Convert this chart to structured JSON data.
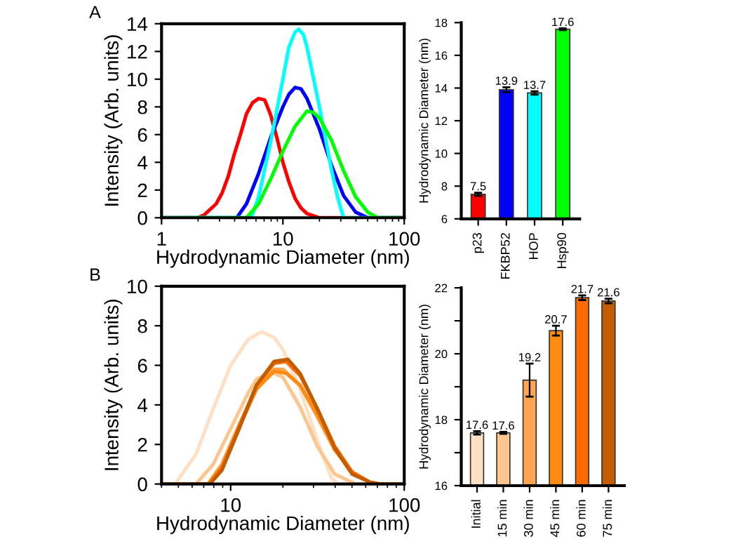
{
  "chart_data": [
    {
      "type": "line",
      "log": "x",
      "xlabel": "Hydrodynamic Diameter (nm)",
      "ylabel": "Intensity (Arb. units)",
      "annotations": [
        "A"
      ],
      "xlim": [
        1,
        100
      ],
      "xticks": [
        1,
        10,
        100
      ],
      "ylim": [
        0,
        14
      ],
      "yticks": [
        0,
        2,
        4,
        6,
        8,
        10,
        12,
        14
      ],
      "series": [
        {
          "color": "#ff0000",
          "x": [
            1,
            2.0,
            2.24,
            2.82,
            3.16,
            3.55,
            3.98,
            4.47,
            5.01,
            5.62,
            6.31,
            7.08,
            7.94,
            8.91,
            10,
            11.2,
            12.6,
            14.1,
            15.8,
            20,
            100
          ],
          "values": [
            0,
            0,
            0.2,
            1.0,
            1.8,
            3,
            4.6,
            6.0,
            7.5,
            8.3,
            8.6,
            8.5,
            7.4,
            5.8,
            4.0,
            2.6,
            1.4,
            0.7,
            0.3,
            0,
            0
          ]
        },
        {
          "color": "#0000ff",
          "x": [
            1,
            4.17,
            5.01,
            6.31,
            7.94,
            10,
            11.2,
            12.6,
            14.1,
            15.8,
            20,
            25.1,
            31.6,
            39.8,
            50.1,
            100
          ],
          "values": [
            0,
            0,
            1.0,
            3.2,
            5.8,
            8.0,
            8.9,
            9.4,
            9.3,
            8.6,
            6.4,
            3.8,
            1.6,
            0.4,
            0,
            0
          ]
        },
        {
          "color": "#00ffff",
          "x": [
            1,
            5.5,
            6.31,
            7.94,
            10,
            11.2,
            12.6,
            13.5,
            14.8,
            15.8,
            20,
            25.1,
            28.2,
            31.6,
            100
          ],
          "values": [
            0,
            0,
            1.5,
            5.5,
            10.0,
            12.3,
            13.4,
            13.6,
            13.2,
            12.3,
            8.0,
            3.5,
            1.5,
            0,
            0
          ]
        },
        {
          "color": "#00ff00",
          "x": [
            1,
            5.01,
            6.31,
            7.94,
            10,
            12.6,
            15.8,
            17.8,
            20,
            25.1,
            31.6,
            39.8,
            50.1,
            60.3,
            100
          ],
          "values": [
            0,
            0,
            1.0,
            2.8,
            4.8,
            6.6,
            7.7,
            7.6,
            7.2,
            5.6,
            3.4,
            1.5,
            0.4,
            0,
            0
          ]
        }
      ]
    },
    {
      "type": "bar",
      "ylabel": "Hydrodynamic Diameter (nm)",
      "categories": [
        "p23",
        "FKBP52",
        "HOP",
        "Hsp90"
      ],
      "colors": [
        "#ff0000",
        "#0000ff",
        "#00ffff",
        "#00ff00"
      ],
      "values": [
        7.5,
        13.9,
        13.7,
        17.6
      ],
      "errors": [
        0.1,
        0.15,
        0.1,
        0.05
      ],
      "data_labels": true,
      "ylim": [
        6,
        18
      ],
      "yticks": [
        6,
        8,
        10,
        12,
        14,
        16,
        18
      ]
    },
    {
      "type": "line",
      "log": "x",
      "xlabel": "Hydrodynamic Diameter (nm)",
      "ylabel": "Intensity (Arb. units)",
      "annotations": [
        "B"
      ],
      "xlim": [
        4,
        100
      ],
      "xticks": [
        10,
        100
      ],
      "ylim": [
        0,
        10
      ],
      "yticks": [
        0,
        2,
        4,
        6,
        8,
        10
      ],
      "series": [
        {
          "color": "#fde0c5",
          "x": [
            4,
            4.79,
            6.31,
            7.94,
            10,
            12.6,
            15.1,
            17.8,
            20,
            25.1,
            31.6,
            38,
            41.7,
            100
          ],
          "values": [
            0,
            0,
            1.5,
            3.8,
            6.0,
            7.3,
            7.7,
            7.4,
            6.8,
            4.8,
            2.2,
            0.3,
            0,
            0
          ]
        },
        {
          "color": "#fdc58f",
          "x": [
            4,
            6.31,
            7.94,
            10,
            12.6,
            14.1,
            15.8,
            17.8,
            20,
            25.1,
            31.6,
            39.8,
            52.5,
            100
          ],
          "values": [
            0,
            0,
            1.0,
            2.8,
            4.6,
            5.3,
            5.5,
            5.6,
            5.4,
            3.9,
            1.9,
            0.5,
            0,
            0
          ]
        },
        {
          "color": "#fda550",
          "x": [
            4,
            7.41,
            8.91,
            11.2,
            14.1,
            17.8,
            20,
            25.1,
            31.6,
            39.8,
            50.1,
            63.1,
            70.8,
            100
          ],
          "values": [
            0,
            0,
            1.0,
            3.0,
            4.9,
            5.8,
            5.8,
            5.0,
            3.4,
            1.7,
            0.6,
            0.1,
            0,
            0
          ]
        },
        {
          "color": "#ff8c10",
          "x": [
            4,
            7.41,
            8.91,
            11.2,
            14.1,
            17.8,
            20.9,
            25.1,
            31.6,
            39.8,
            50.1,
            63.1,
            72.4,
            100
          ],
          "values": [
            0,
            0,
            0.9,
            2.9,
            4.8,
            5.7,
            5.6,
            5.0,
            3.5,
            1.8,
            0.6,
            0.1,
            0,
            0
          ]
        },
        {
          "color": "#ff6a00",
          "x": [
            4,
            7.59,
            8.91,
            11.2,
            14.1,
            17.8,
            20.9,
            25.1,
            31.6,
            39.8,
            50.1,
            63.1,
            72.4,
            100
          ],
          "values": [
            0,
            0,
            0.8,
            2.9,
            5.0,
            6.1,
            6.2,
            5.5,
            3.8,
            1.9,
            0.6,
            0.1,
            0,
            0
          ]
        },
        {
          "color": "#c25e00",
          "x": [
            4,
            7.59,
            8.91,
            11.2,
            14.1,
            17.8,
            21.4,
            25.1,
            31.6,
            39.8,
            50.1,
            63.1,
            72.4,
            100
          ],
          "values": [
            0,
            0,
            0.7,
            2.8,
            5.0,
            6.2,
            6.3,
            5.6,
            3.8,
            1.8,
            0.5,
            0.1,
            0,
            0
          ]
        }
      ]
    },
    {
      "type": "bar",
      "ylabel": "Hydrodynamic Diameter (nm)",
      "categories": [
        "Initial",
        "15 min",
        "30 min",
        "45 min",
        "60 min",
        "75 min"
      ],
      "colors": [
        "#fde0c5",
        "#fdc58f",
        "#fda550",
        "#ff8c10",
        "#ff6a00",
        "#c25e00"
      ],
      "values": [
        17.6,
        17.6,
        19.2,
        20.7,
        21.7,
        21.6
      ],
      "errors": [
        0.05,
        0.03,
        0.5,
        0.15,
        0.07,
        0.07
      ],
      "data_labels": true,
      "ylim": [
        16,
        22
      ],
      "yticks": [
        16,
        {
          "value": 17,
          "label": null
        },
        18,
        {
          "value": 19,
          "label": null
        },
        20,
        {
          "value": 21,
          "label": null
        },
        22
      ]
    }
  ]
}
